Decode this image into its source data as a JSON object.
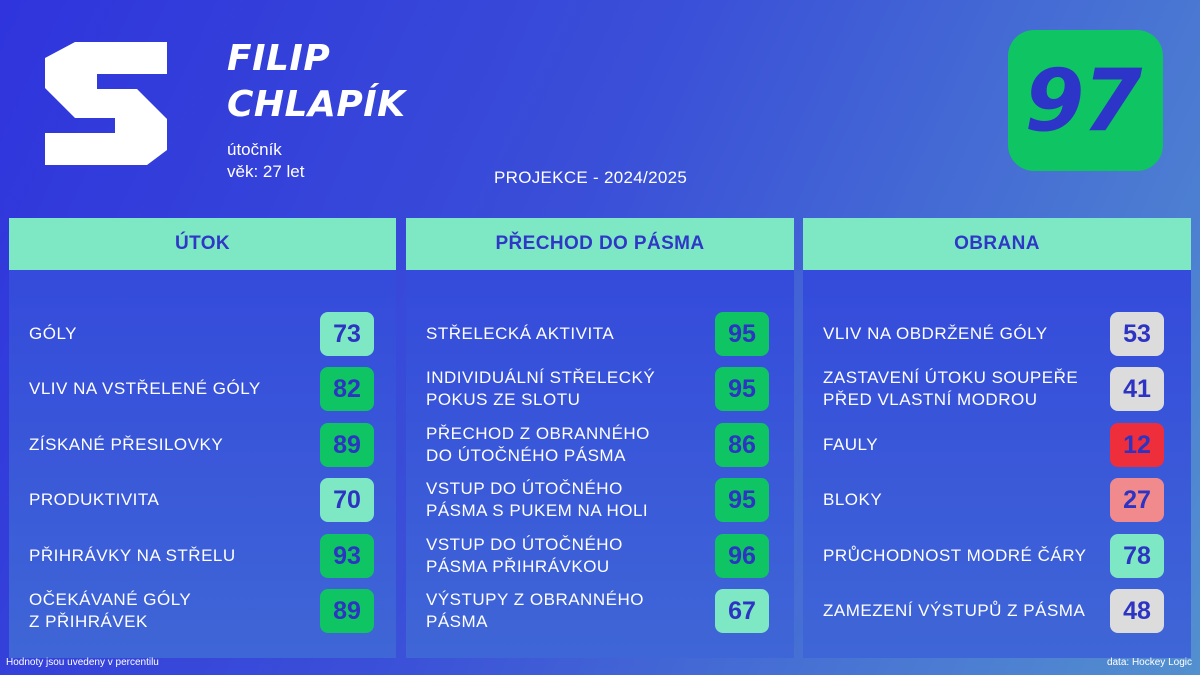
{
  "player": {
    "first_name": "FILIP",
    "last_name": "CHLAPÍK",
    "position": "útočník",
    "age": "věk: 27 let",
    "overall": "97"
  },
  "projection": "PROJEKCE - 2024/2025",
  "colors": {
    "background": "#3138dc",
    "header": "#7ee8c4",
    "header_text": "#2f38c6",
    "badge_text": "#2d33c2"
  },
  "sections": [
    {
      "title": "ÚTOK",
      "metrics": [
        {
          "label": "GÓLY",
          "value": "73",
          "color": "#7ee8c4"
        },
        {
          "label": "VLIV NA VSTŘELENÉ GÓLY",
          "value": "82",
          "color": "#0fc462"
        },
        {
          "label": "ZÍSKANÉ PŘESILOVKY",
          "value": "89",
          "color": "#0fc462"
        },
        {
          "label": "PRODUKTIVITA",
          "value": "70",
          "color": "#7ee8c4"
        },
        {
          "label": "PŘIHRÁVKY NA STŘELU",
          "value": "93",
          "color": "#0fc462"
        },
        {
          "label": "OČEKÁVANÉ GÓLY\nZ PŘIHRÁVEK",
          "value": "89",
          "color": "#0fc462"
        }
      ]
    },
    {
      "title": "PŘECHOD DO PÁSMA",
      "metrics": [
        {
          "label": "STŘELECKÁ AKTIVITA",
          "value": "95",
          "color": "#0fc462"
        },
        {
          "label": "INDIVIDUÁLNÍ STŘELECKÝ\nPOKUS ZE SLOTU",
          "value": "95",
          "color": "#0fc462"
        },
        {
          "label": "PŘECHOD Z OBRANNÉHO\nDO ÚTOČNÉHO PÁSMA",
          "value": "86",
          "color": "#0fc462"
        },
        {
          "label": "VSTUP DO ÚTOČNÉHO\nPÁSMA S PUKEM NA HOLI",
          "value": "95",
          "color": "#0fc462"
        },
        {
          "label": "VSTUP DO ÚTOČNÉHO\nPÁSMA PŘIHRÁVKOU",
          "value": "96",
          "color": "#0fc462"
        },
        {
          "label": "VÝSTUPY Z OBRANNÉHO\nPÁSMA",
          "value": "67",
          "color": "#7ee8c4"
        }
      ]
    },
    {
      "title": "OBRANA",
      "metrics": [
        {
          "label": "VLIV NA OBDRŽENÉ GÓLY",
          "value": "53",
          "color": "#dcdcdc"
        },
        {
          "label": "ZASTAVENÍ ÚTOKU SOUPEŘE\nPŘED VLASTNÍ MODROU",
          "value": "41",
          "color": "#dcdcdc"
        },
        {
          "label": "FAULY",
          "value": "12",
          "color": "#ee2e3a"
        },
        {
          "label": "BLOKY",
          "value": "27",
          "color": "#f08a8c"
        },
        {
          "label": "PRŮCHODNOST MODRÉ ČÁRY",
          "value": "78",
          "color": "#7ee8c4"
        },
        {
          "label": "ZAMEZENÍ VÝSTUPŮ Z PÁSMA",
          "value": "48",
          "color": "#dcdcdc"
        }
      ]
    }
  ],
  "footer": {
    "note": "Hodnoty jsou uvedeny v percentilu",
    "source": "data: Hockey Logic"
  }
}
